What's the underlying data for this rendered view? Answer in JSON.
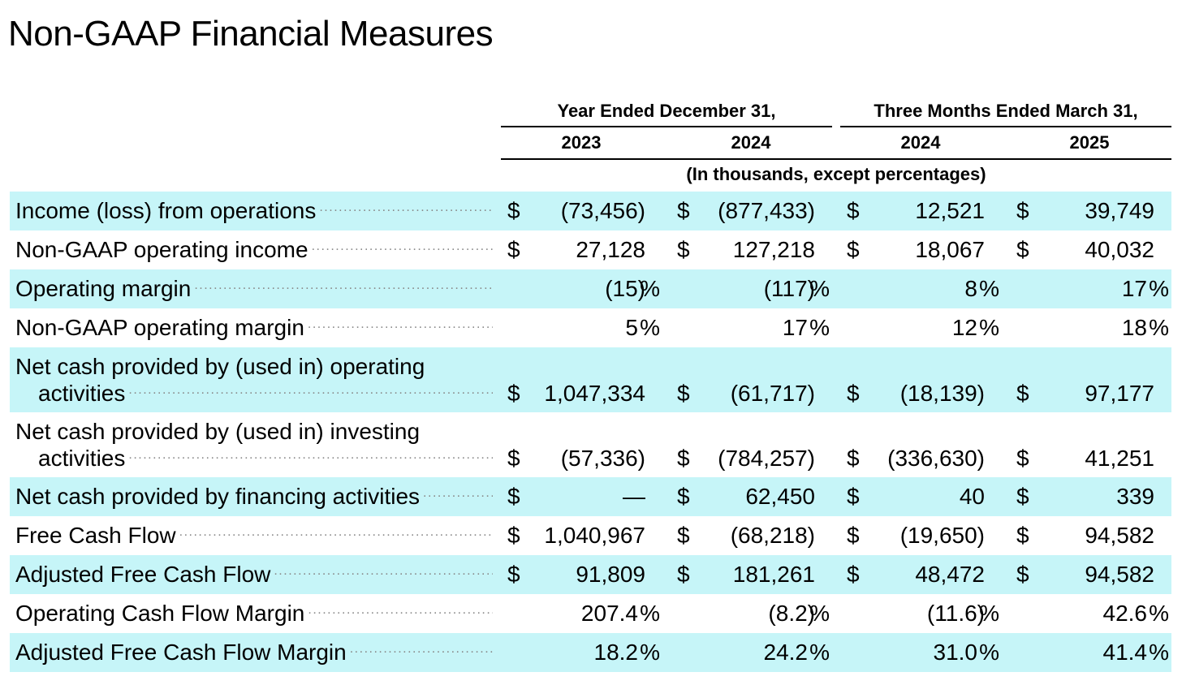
{
  "title": "Non-GAAP Financial Measures",
  "table": {
    "column_groups": [
      {
        "label": "Year Ended December 31,",
        "years": [
          "2023",
          "2024"
        ]
      },
      {
        "label": "Three Months Ended March 31,",
        "years": [
          "2024",
          "2025"
        ]
      }
    ],
    "unit_note": "(In thousands, except percentages)",
    "rows": [
      {
        "label": "Income (loss) from operations",
        "cells": [
          {
            "cur": "$",
            "val": "(73,456)"
          },
          {
            "cur": "$",
            "val": "(877,433)"
          },
          {
            "cur": "$",
            "val": "12,521"
          },
          {
            "cur": "$",
            "val": "39,749"
          }
        ]
      },
      {
        "label": "Non-GAAP operating income",
        "cells": [
          {
            "cur": "$",
            "val": "27,128"
          },
          {
            "cur": "$",
            "val": "127,218"
          },
          {
            "cur": "$",
            "val": "18,067"
          },
          {
            "cur": "$",
            "val": "40,032"
          }
        ]
      },
      {
        "label": "Operating margin",
        "cells": [
          {
            "val": "(15)",
            "pct": "%"
          },
          {
            "val": "(117)",
            "pct": "%"
          },
          {
            "val": "8",
            "pct": "%"
          },
          {
            "val": "17",
            "pct": "%"
          }
        ]
      },
      {
        "label": "Non-GAAP operating margin",
        "cells": [
          {
            "val": "5",
            "pct": "%"
          },
          {
            "val": "17",
            "pct": "%"
          },
          {
            "val": "12",
            "pct": "%"
          },
          {
            "val": "18",
            "pct": "%"
          }
        ]
      },
      {
        "label": "Net cash provided by (used in) operating activities",
        "cells": [
          {
            "cur": "$",
            "val": "1,047,334"
          },
          {
            "cur": "$",
            "val": "(61,717)"
          },
          {
            "cur": "$",
            "val": "(18,139)"
          },
          {
            "cur": "$",
            "val": "97,177"
          }
        ]
      },
      {
        "label": "Net cash provided by (used in) investing activities",
        "cells": [
          {
            "cur": "$",
            "val": "(57,336)"
          },
          {
            "cur": "$",
            "val": "(784,257)"
          },
          {
            "cur": "$",
            "val": "(336,630)"
          },
          {
            "cur": "$",
            "val": "41,251"
          }
        ]
      },
      {
        "label": "Net cash provided by financing activities",
        "cells": [
          {
            "cur": "$",
            "val": "—"
          },
          {
            "cur": "$",
            "val": "62,450"
          },
          {
            "cur": "$",
            "val": "40"
          },
          {
            "cur": "$",
            "val": "339"
          }
        ]
      },
      {
        "label": "Free Cash Flow",
        "cells": [
          {
            "cur": "$",
            "val": "1,040,967"
          },
          {
            "cur": "$",
            "val": "(68,218)"
          },
          {
            "cur": "$",
            "val": "(19,650)"
          },
          {
            "cur": "$",
            "val": "94,582"
          }
        ]
      },
      {
        "label": "Adjusted Free Cash Flow",
        "cells": [
          {
            "cur": "$",
            "val": "91,809"
          },
          {
            "cur": "$",
            "val": "181,261"
          },
          {
            "cur": "$",
            "val": "48,472"
          },
          {
            "cur": "$",
            "val": "94,582"
          }
        ]
      },
      {
        "label": "Operating Cash Flow Margin",
        "cells": [
          {
            "val": "207.4",
            "pct": "%"
          },
          {
            "val": "(8.2)",
            "pct": "%"
          },
          {
            "val": "(11.6)",
            "pct": "%"
          },
          {
            "val": "42.6",
            "pct": "%"
          }
        ]
      },
      {
        "label": "Adjusted Free Cash Flow Margin",
        "cells": [
          {
            "val": "18.2",
            "pct": "%"
          },
          {
            "val": "24.2",
            "pct": "%"
          },
          {
            "val": "31.0",
            "pct": "%"
          },
          {
            "val": "41.4",
            "pct": "%"
          }
        ]
      }
    ]
  }
}
